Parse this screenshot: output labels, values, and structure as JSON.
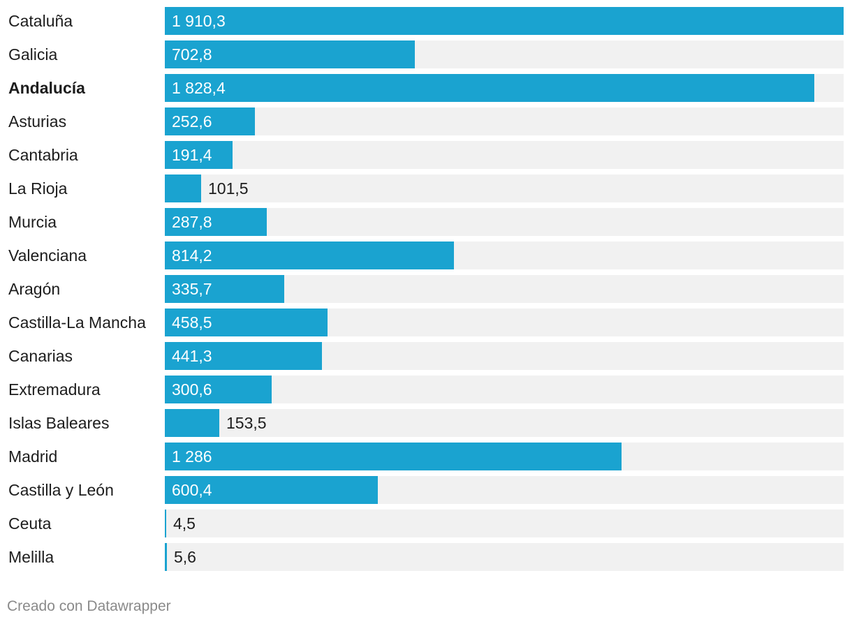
{
  "chart_data": {
    "type": "bar",
    "orientation": "horizontal",
    "categories": [
      "Cataluña",
      "Galicia",
      "Andalucía",
      "Asturias",
      "Cantabria",
      "La Rioja",
      "Murcia",
      "Valenciana",
      "Aragón",
      "Castilla-La Mancha",
      "Canarias",
      "Extremadura",
      "Islas Baleares",
      "Madrid",
      "Castilla y León",
      "Ceuta",
      "Melilla"
    ],
    "values": [
      1910.3,
      702.8,
      1828.4,
      252.6,
      191.4,
      101.5,
      287.8,
      814.2,
      335.7,
      458.5,
      441.3,
      300.6,
      153.5,
      1286,
      600.4,
      4.5,
      5.6
    ],
    "value_labels": [
      "1 910,3",
      "702,8",
      "1 828,4",
      "252,6",
      "191,4",
      "101,5",
      "287,8",
      "814,2",
      "335,7",
      "458,5",
      "441,3",
      "300,6",
      "153,5",
      "1 286",
      "600,4",
      "4,5",
      "5,6"
    ],
    "highlighted": [
      "Andalucía"
    ],
    "xlim": [
      0,
      1910.3
    ],
    "bar_color": "#1aa3d0",
    "track_color": "#f1f1f1"
  },
  "footer": {
    "credit": "Creado con Datawrapper"
  }
}
